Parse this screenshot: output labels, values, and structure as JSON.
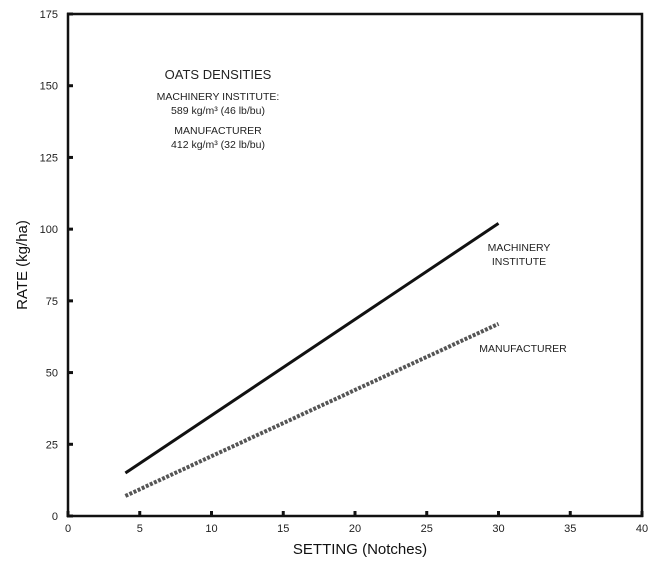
{
  "chart_data": {
    "type": "line",
    "xlabel": "SETTING (Notches)",
    "ylabel": "RATE (kg/ha)",
    "xlim": [
      0,
      40
    ],
    "ylim": [
      0,
      175
    ],
    "x_ticks": [
      0,
      5,
      10,
      15,
      20,
      25,
      30,
      35,
      40
    ],
    "y_ticks": [
      0,
      25,
      50,
      75,
      100,
      125,
      150,
      175
    ],
    "grid": false,
    "series": [
      {
        "name": "MACHINERY INSTITUTE",
        "style": "solid",
        "color": "#111111",
        "points": [
          [
            4,
            15
          ],
          [
            30,
            102
          ]
        ]
      },
      {
        "name": "MANUFACTURER",
        "style": "dashed",
        "color": "#555555",
        "points": [
          [
            4,
            7
          ],
          [
            30,
            67
          ]
        ]
      }
    ],
    "annotations": {
      "title": "OATS DENSITIES",
      "line1": "MACHINERY INSTITUTE:",
      "line2": "589 kg/m³ (46 lb/bu)",
      "line3": "MANUFACTURER",
      "line4": "412 kg/m³ (32 lb/bu)",
      "label_mi_1": "MACHINERY",
      "label_mi_2": "INSTITUTE",
      "label_mf": "MANUFACTURER"
    }
  }
}
